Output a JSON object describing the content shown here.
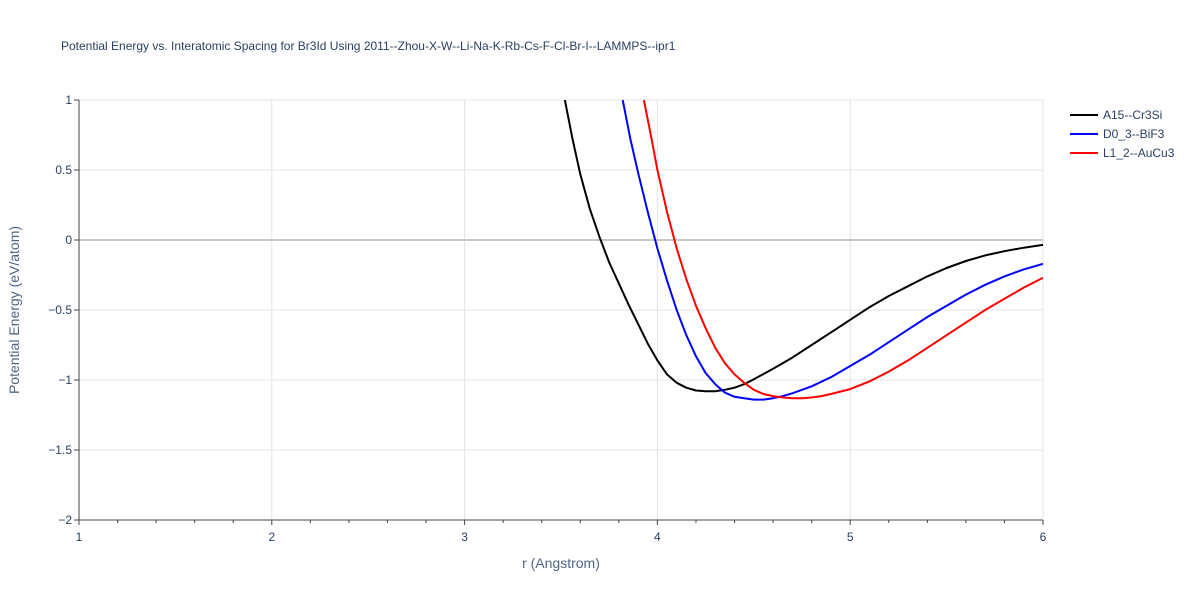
{
  "chart_data": {
    "type": "line",
    "title": "Potential Energy vs. Interatomic Spacing for Br3Id Using 2011--Zhou-X-W--Li-Na-K-Rb-Cs-F-Cl-Br-I--LAMMPS--ipr1",
    "xlabel": "r (Angstrom)",
    "ylabel": "Potential Energy (eV/atom)",
    "xlim": [
      1,
      6
    ],
    "ylim": [
      -2,
      1
    ],
    "x_ticks": [
      "1",
      "2",
      "3",
      "4",
      "5",
      "6"
    ],
    "y_ticks": [
      "1",
      "0.5",
      "0",
      "−0.5",
      "−1",
      "−1.5",
      "−2"
    ],
    "grid": true,
    "legend_position": "top-right",
    "series": [
      {
        "name": "A15--Cr3Si",
        "color": "#000000",
        "x": [
          3.52,
          3.56,
          3.6,
          3.65,
          3.7,
          3.75,
          3.8,
          3.85,
          3.9,
          3.95,
          4.0,
          4.05,
          4.1,
          4.15,
          4.2,
          4.25,
          4.3,
          4.35,
          4.4,
          4.45,
          4.5,
          4.6,
          4.7,
          4.8,
          4.9,
          5.0,
          5.1,
          5.2,
          5.3,
          5.4,
          5.5,
          5.6,
          5.7,
          5.8,
          5.9,
          6.0
        ],
        "values": [
          1.0,
          0.72,
          0.47,
          0.22,
          0.02,
          -0.16,
          -0.31,
          -0.46,
          -0.6,
          -0.74,
          -0.86,
          -0.96,
          -1.02,
          -1.055,
          -1.075,
          -1.08,
          -1.08,
          -1.07,
          -1.055,
          -1.03,
          -0.995,
          -0.92,
          -0.84,
          -0.75,
          -0.66,
          -0.57,
          -0.48,
          -0.4,
          -0.33,
          -0.26,
          -0.2,
          -0.15,
          -0.11,
          -0.08,
          -0.055,
          -0.035
        ]
      },
      {
        "name": "D0_3--BiF3",
        "color": "#0000ff",
        "x": [
          3.82,
          3.86,
          3.9,
          3.95,
          4.0,
          4.05,
          4.1,
          4.15,
          4.2,
          4.25,
          4.3,
          4.35,
          4.4,
          4.45,
          4.5,
          4.55,
          4.6,
          4.65,
          4.7,
          4.8,
          4.9,
          5.0,
          5.1,
          5.2,
          5.3,
          5.4,
          5.5,
          5.6,
          5.7,
          5.8,
          5.9,
          6.0
        ],
        "values": [
          1.0,
          0.72,
          0.48,
          0.2,
          -0.06,
          -0.29,
          -0.5,
          -0.68,
          -0.83,
          -0.95,
          -1.03,
          -1.09,
          -1.12,
          -1.13,
          -1.14,
          -1.14,
          -1.13,
          -1.115,
          -1.095,
          -1.045,
          -0.98,
          -0.9,
          -0.82,
          -0.73,
          -0.64,
          -0.55,
          -0.47,
          -0.39,
          -0.32,
          -0.26,
          -0.21,
          -0.17
        ]
      },
      {
        "name": "L1_2--AuCu3",
        "color": "#ff0000",
        "x": [
          3.93,
          3.97,
          4.0,
          4.05,
          4.1,
          4.15,
          4.2,
          4.25,
          4.3,
          4.35,
          4.4,
          4.45,
          4.5,
          4.55,
          4.6,
          4.65,
          4.7,
          4.75,
          4.8,
          4.85,
          4.9,
          5.0,
          5.1,
          5.2,
          5.3,
          5.4,
          5.5,
          5.6,
          5.7,
          5.8,
          5.9,
          6.0
        ],
        "values": [
          1.0,
          0.72,
          0.5,
          0.2,
          -0.06,
          -0.28,
          -0.47,
          -0.63,
          -0.77,
          -0.88,
          -0.96,
          -1.02,
          -1.07,
          -1.1,
          -1.115,
          -1.125,
          -1.13,
          -1.13,
          -1.125,
          -1.115,
          -1.1,
          -1.065,
          -1.01,
          -0.94,
          -0.86,
          -0.77,
          -0.68,
          -0.59,
          -0.5,
          -0.42,
          -0.34,
          -0.27
        ]
      }
    ]
  }
}
